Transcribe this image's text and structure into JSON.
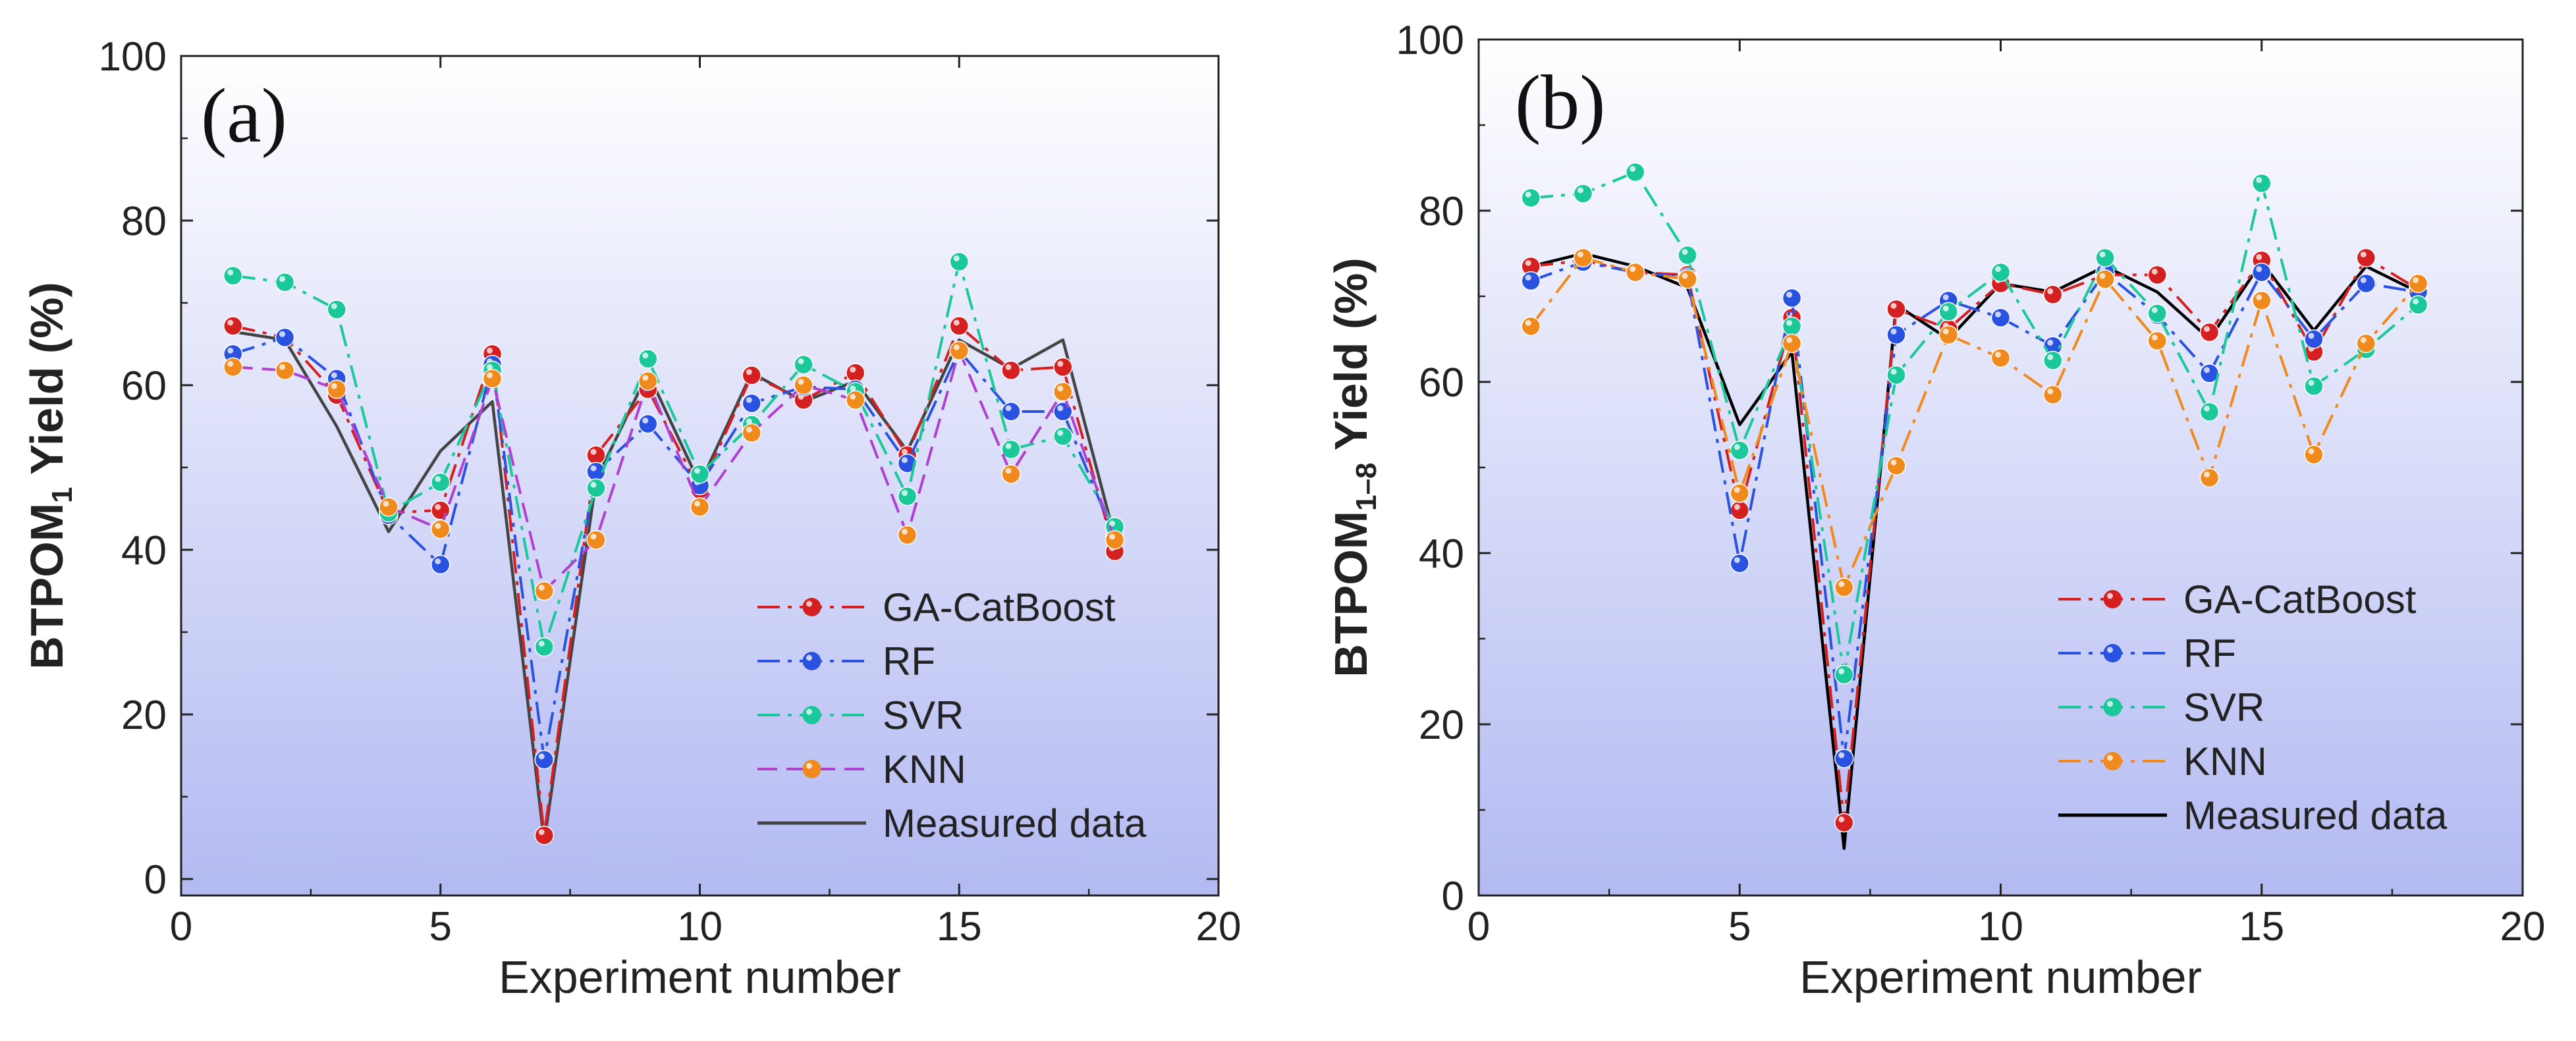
{
  "figure": {
    "background": "#ffffff"
  },
  "chart_data": [
    {
      "type": "line",
      "panel_label": "(a)",
      "xlabel": "Experiment number",
      "ylabel_main": "BTPOM",
      "ylabel_sub": "1",
      "ylabel_rest": " Yield (%)",
      "xlim": [
        0,
        20
      ],
      "ylim": [
        -2,
        100
      ],
      "x_ticks": [
        0,
        5,
        10,
        15,
        20
      ],
      "y_ticks": [
        0,
        20,
        40,
        60,
        80,
        100
      ],
      "x": [
        1,
        2,
        3,
        4,
        5,
        6,
        7,
        8,
        9,
        10,
        11,
        12,
        13,
        14,
        15,
        16,
        17,
        18
      ],
      "series": [
        {
          "name": "GA-CatBoost",
          "color": "#d42020",
          "marker": true,
          "dash": "dashdot",
          "values": [
            67.2,
            65.8,
            58.8,
            44.5,
            44.8,
            63.8,
            5.3,
            51.5,
            59.5,
            47.3,
            61.2,
            58.2,
            61.5,
            51.5,
            67.2,
            61.8,
            62.2,
            39.8
          ]
        },
        {
          "name": "RF",
          "color": "#2a52e0",
          "marker": true,
          "dash": "dashdot",
          "values": [
            63.8,
            65.8,
            60.8,
            44.2,
            38.2,
            62.5,
            14.5,
            49.5,
            55.3,
            47.8,
            57.8,
            59.8,
            59.5,
            50.5,
            64.2,
            56.8,
            56.8,
            41.5
          ]
        },
        {
          "name": "SVR",
          "color": "#1ac89a",
          "marker": true,
          "dash": "dashdot",
          "values": [
            73.3,
            72.5,
            69.2,
            44.5,
            48.2,
            61.8,
            28.2,
            47.5,
            63.2,
            49.2,
            55.2,
            62.5,
            59.2,
            46.5,
            75.0,
            52.2,
            53.8,
            42.8
          ]
        },
        {
          "name": "KNN",
          "color": "#f08a1c",
          "line_color": "#b040d0",
          "marker": true,
          "dash": "dash",
          "values": [
            62.2,
            61.8,
            59.5,
            45.2,
            42.5,
            60.8,
            35.0,
            41.2,
            60.5,
            45.2,
            54.2,
            60.0,
            58.2,
            41.8,
            64.2,
            49.2,
            59.2,
            41.2
          ]
        },
        {
          "name": "Measured data",
          "color": "#444444",
          "marker": false,
          "dash": "solid",
          "values": [
            66.5,
            65.5,
            55.0,
            42.2,
            52.0,
            58.0,
            4.5,
            48.5,
            61.5,
            48.0,
            61.5,
            58.0,
            60.5,
            52.0,
            65.5,
            62.0,
            65.5,
            41.5
          ]
        }
      ]
    },
    {
      "type": "line",
      "panel_label": "(b)",
      "xlabel": "Experiment number",
      "ylabel_main": "BTPOM",
      "ylabel_sub": "1–8",
      "ylabel_rest": " Yield (%)",
      "xlim": [
        0,
        20
      ],
      "ylim": [
        0,
        100
      ],
      "x_ticks": [
        0,
        5,
        10,
        15,
        20
      ],
      "y_ticks": [
        0,
        20,
        40,
        60,
        80,
        100
      ],
      "x": [
        1,
        2,
        3,
        4,
        5,
        6,
        7,
        8,
        9,
        10,
        11,
        12,
        13,
        14,
        15,
        16,
        17,
        18
      ],
      "series": [
        {
          "name": "GA-CatBoost",
          "color": "#d42020",
          "marker": true,
          "dash": "dashdot",
          "values": [
            73.5,
            74.2,
            72.8,
            72.5,
            45.0,
            67.5,
            8.5,
            68.5,
            66.2,
            71.5,
            70.2,
            72.5,
            72.5,
            65.8,
            74.2,
            63.5,
            74.5,
            70.8
          ]
        },
        {
          "name": "RF",
          "color": "#2a52e0",
          "marker": true,
          "dash": "dashdot",
          "values": [
            71.8,
            74.0,
            72.8,
            72.2,
            38.8,
            69.8,
            16.0,
            65.5,
            69.5,
            67.5,
            64.2,
            72.8,
            67.8,
            61.0,
            72.8,
            65.0,
            71.5,
            70.5
          ]
        },
        {
          "name": "SVR",
          "color": "#1ac89a",
          "marker": true,
          "dash": "dashdot",
          "values": [
            81.5,
            82.0,
            84.5,
            74.8,
            52.0,
            66.5,
            25.8,
            60.8,
            68.2,
            72.8,
            62.5,
            74.5,
            68.0,
            56.5,
            83.2,
            59.5,
            63.8,
            69.0
          ]
        },
        {
          "name": "KNN",
          "color": "#f08a1c",
          "marker": true,
          "dash": "dashdot",
          "values": [
            66.5,
            74.5,
            72.8,
            72.0,
            47.0,
            64.5,
            36.0,
            50.2,
            65.5,
            62.8,
            58.5,
            72.0,
            64.8,
            48.8,
            69.5,
            51.5,
            64.5,
            71.5
          ]
        },
        {
          "name": "Measured data",
          "color": "#000000",
          "marker": false,
          "dash": "solid",
          "values": [
            73.5,
            75.0,
            73.5,
            71.0,
            55.0,
            63.5,
            5.5,
            69.0,
            65.0,
            71.5,
            70.5,
            73.5,
            70.5,
            65.0,
            74.0,
            66.0,
            73.5,
            70.5
          ]
        }
      ]
    }
  ]
}
